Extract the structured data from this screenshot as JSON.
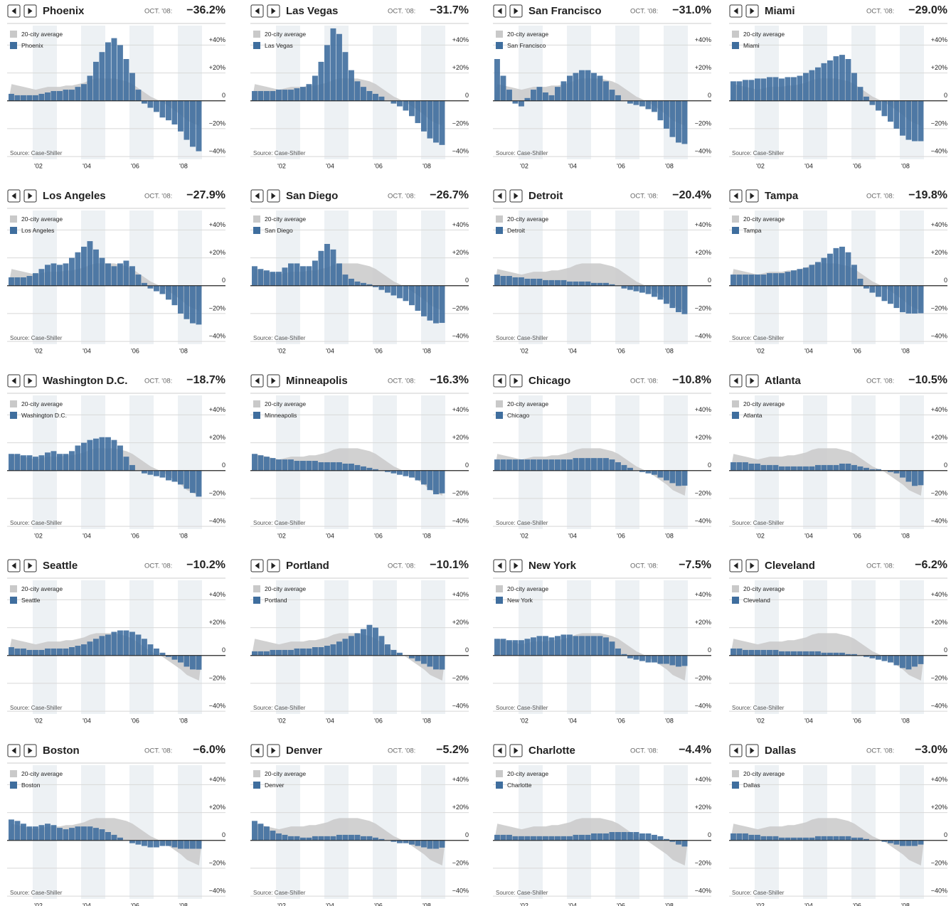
{
  "chart_data": {
    "type": "bar",
    "date_label": "OCT. '08:",
    "source": "Source: Case-Shiller",
    "x": [
      2001,
      2001.25,
      2001.5,
      2001.75,
      2002,
      2002.25,
      2002.5,
      2002.75,
      2003,
      2003.25,
      2003.5,
      2003.75,
      2004,
      2004.25,
      2004.5,
      2004.75,
      2005,
      2005.25,
      2005.5,
      2005.75,
      2006,
      2006.25,
      2006.5,
      2006.75,
      2007,
      2007.25,
      2007.5,
      2007.75,
      2008,
      2008.25,
      2008.5,
      2008.75
    ],
    "xlim": [
      2001,
      2009
    ],
    "xticks": [
      {
        "value": 2002,
        "label": "'02"
      },
      {
        "value": 2004,
        "label": "'04"
      },
      {
        "value": 2006,
        "label": "'06"
      },
      {
        "value": 2008,
        "label": "'08"
      }
    ],
    "ylim": [
      -42,
      54
    ],
    "yticks": [
      {
        "value": 40,
        "label": "+40%"
      },
      {
        "value": 20,
        "label": "+20%"
      },
      0,
      {
        "value": -20,
        "label": "−20%"
      },
      {
        "value": -40,
        "label": "−40%"
      }
    ],
    "grid": true,
    "color": "#3f6e9e",
    "average": {
      "name": "20-city average",
      "color": "#c9c9c9",
      "values": [
        12,
        11,
        10,
        9,
        8,
        9,
        10,
        10,
        10,
        11,
        11,
        12,
        13,
        15,
        16,
        16,
        16,
        16,
        15,
        14,
        12,
        9,
        6,
        3,
        1,
        -1,
        -4,
        -7,
        -10,
        -14,
        -16,
        -18
      ]
    },
    "panels": [
      {
        "name": "Phoenix",
        "value": -36.2,
        "value_label": "−36.2%",
        "values": [
          5,
          4,
          4,
          4,
          4,
          5,
          6,
          7,
          7,
          8,
          8,
          10,
          12,
          18,
          28,
          35,
          42,
          45,
          40,
          30,
          20,
          8,
          -2,
          -5,
          -8,
          -12,
          -14,
          -17,
          -22,
          -28,
          -33,
          -36.2
        ]
      },
      {
        "name": "Las Vegas",
        "value": -31.7,
        "value_label": "−31.7%",
        "values": [
          7,
          7,
          7,
          7,
          8,
          8,
          8,
          9,
          10,
          12,
          18,
          28,
          40,
          52,
          48,
          35,
          22,
          14,
          10,
          7,
          5,
          3,
          0,
          -2,
          -4,
          -7,
          -11,
          -16,
          -22,
          -27,
          -30,
          -31.7
        ]
      },
      {
        "name": "San Francisco",
        "value": -31.0,
        "value_label": "−31.0%",
        "values": [
          30,
          18,
          8,
          -2,
          -4,
          2,
          8,
          10,
          6,
          4,
          10,
          14,
          18,
          20,
          22,
          22,
          20,
          18,
          14,
          8,
          4,
          0,
          -2,
          -3,
          -4,
          -6,
          -8,
          -14,
          -20,
          -26,
          -30,
          -31.0
        ]
      },
      {
        "name": "Miami",
        "value": -29.0,
        "value_label": "−29.0%",
        "values": [
          14,
          14,
          15,
          15,
          16,
          16,
          17,
          17,
          16,
          17,
          17,
          18,
          20,
          22,
          24,
          27,
          29,
          32,
          33,
          30,
          20,
          10,
          3,
          -3,
          -7,
          -11,
          -15,
          -20,
          -25,
          -28,
          -29,
          -29.0
        ]
      },
      {
        "name": "Los Angeles",
        "value": -27.9,
        "value_label": "−27.9%",
        "values": [
          6,
          6,
          6,
          7,
          9,
          12,
          15,
          16,
          15,
          16,
          20,
          24,
          28,
          32,
          26,
          20,
          16,
          14,
          16,
          18,
          14,
          8,
          2,
          -2,
          -4,
          -6,
          -10,
          -14,
          -20,
          -24,
          -27,
          -27.9
        ]
      },
      {
        "name": "San Diego",
        "value": -26.7,
        "value_label": "−26.7%",
        "values": [
          14,
          12,
          11,
          10,
          10,
          13,
          16,
          16,
          14,
          14,
          18,
          25,
          30,
          26,
          16,
          8,
          5,
          3,
          2,
          1,
          -1,
          -3,
          -5,
          -7,
          -9,
          -11,
          -14,
          -18,
          -22,
          -25,
          -27,
          -26.7
        ]
      },
      {
        "name": "Detroit",
        "value": -20.4,
        "value_label": "−20.4%",
        "values": [
          8,
          7,
          7,
          6,
          6,
          5,
          5,
          5,
          4,
          4,
          4,
          4,
          3,
          3,
          3,
          3,
          2,
          2,
          2,
          1,
          0,
          -2,
          -3,
          -4,
          -5,
          -6,
          -8,
          -10,
          -13,
          -16,
          -19,
          -20.4
        ]
      },
      {
        "name": "Tampa",
        "value": -19.8,
        "value_label": "−19.8%",
        "values": [
          8,
          8,
          8,
          8,
          8,
          8,
          9,
          9,
          9,
          10,
          11,
          12,
          13,
          15,
          17,
          20,
          23,
          27,
          28,
          24,
          15,
          5,
          -2,
          -5,
          -8,
          -11,
          -13,
          -16,
          -19,
          -20,
          -20,
          -19.8
        ]
      },
      {
        "name": "Washington D.C.",
        "value": -18.7,
        "value_label": "−18.7%",
        "values": [
          12,
          12,
          11,
          11,
          10,
          11,
          13,
          14,
          12,
          12,
          14,
          18,
          20,
          22,
          23,
          24,
          24,
          22,
          18,
          10,
          4,
          0,
          -2,
          -3,
          -4,
          -5,
          -7,
          -8,
          -10,
          -13,
          -16,
          -18.7
        ]
      },
      {
        "name": "Minneapolis",
        "value": -16.3,
        "value_label": "−16.3%",
        "values": [
          12,
          11,
          10,
          9,
          8,
          8,
          8,
          7,
          7,
          7,
          7,
          6,
          6,
          6,
          6,
          5,
          5,
          4,
          3,
          2,
          1,
          0,
          -1,
          -2,
          -3,
          -4,
          -5,
          -7,
          -10,
          -14,
          -17,
          -16.3
        ]
      },
      {
        "name": "Chicago",
        "value": -10.8,
        "value_label": "−10.8%",
        "values": [
          8,
          8,
          8,
          8,
          8,
          8,
          8,
          8,
          8,
          8,
          8,
          8,
          8,
          9,
          9,
          9,
          9,
          9,
          9,
          8,
          6,
          4,
          2,
          0,
          -1,
          -2,
          -3,
          -5,
          -7,
          -9,
          -11,
          -10.8
        ]
      },
      {
        "name": "Atlanta",
        "value": -10.5,
        "value_label": "−10.5%",
        "values": [
          6,
          6,
          6,
          5,
          5,
          4,
          4,
          4,
          3,
          3,
          3,
          3,
          3,
          3,
          4,
          4,
          4,
          4,
          5,
          5,
          4,
          3,
          2,
          1,
          1,
          0,
          -1,
          -2,
          -5,
          -8,
          -11,
          -10.5
        ]
      },
      {
        "name": "Seattle",
        "value": -10.2,
        "value_label": "−10.2%",
        "values": [
          6,
          5,
          5,
          4,
          4,
          4,
          5,
          5,
          5,
          5,
          6,
          7,
          8,
          10,
          12,
          14,
          15,
          17,
          18,
          18,
          17,
          15,
          12,
          8,
          5,
          2,
          -1,
          -3,
          -5,
          -8,
          -10,
          -10.2
        ]
      },
      {
        "name": "Portland",
        "value": -10.1,
        "value_label": "−10.1%",
        "values": [
          3,
          3,
          3,
          4,
          4,
          4,
          4,
          5,
          5,
          5,
          6,
          6,
          7,
          8,
          10,
          12,
          14,
          16,
          19,
          22,
          20,
          14,
          8,
          4,
          2,
          0,
          -2,
          -4,
          -6,
          -8,
          -10,
          -10.1
        ]
      },
      {
        "name": "New York",
        "value": -7.5,
        "value_label": "−7.5%",
        "values": [
          12,
          12,
          11,
          11,
          11,
          12,
          13,
          14,
          14,
          13,
          14,
          15,
          15,
          14,
          14,
          14,
          14,
          14,
          13,
          10,
          5,
          1,
          -2,
          -3,
          -4,
          -5,
          -5,
          -6,
          -6,
          -7,
          -8,
          -7.5
        ]
      },
      {
        "name": "Cleveland",
        "value": -6.2,
        "value_label": "−6.2%",
        "values": [
          5,
          5,
          4,
          4,
          4,
          4,
          4,
          4,
          3,
          3,
          3,
          3,
          3,
          3,
          3,
          2,
          2,
          2,
          2,
          1,
          1,
          0,
          -1,
          -2,
          -3,
          -4,
          -5,
          -7,
          -9,
          -10,
          -8,
          -6.2
        ]
      },
      {
        "name": "Boston",
        "value": -6.0,
        "value_label": "−6.0%",
        "values": [
          15,
          14,
          12,
          10,
          10,
          11,
          12,
          11,
          9,
          8,
          9,
          10,
          10,
          10,
          9,
          8,
          6,
          4,
          2,
          0,
          -2,
          -3,
          -4,
          -5,
          -5,
          -4,
          -4,
          -5,
          -6,
          -6,
          -6,
          -6.0
        ]
      },
      {
        "name": "Denver",
        "value": -5.2,
        "value_label": "−5.2%",
        "values": [
          14,
          12,
          10,
          7,
          5,
          4,
          3,
          3,
          2,
          2,
          3,
          3,
          3,
          3,
          4,
          4,
          4,
          4,
          3,
          3,
          2,
          1,
          0,
          -1,
          -2,
          -2,
          -3,
          -4,
          -5,
          -6,
          -6,
          -5.2
        ]
      },
      {
        "name": "Charlotte",
        "value": -4.4,
        "value_label": "−4.4%",
        "values": [
          4,
          4,
          4,
          3,
          3,
          3,
          3,
          3,
          3,
          3,
          3,
          3,
          3,
          4,
          4,
          4,
          5,
          5,
          5,
          6,
          6,
          6,
          6,
          6,
          5,
          5,
          4,
          3,
          1,
          -1,
          -3,
          -4.4
        ]
      },
      {
        "name": "Dallas",
        "value": -3.0,
        "value_label": "−3.0%",
        "values": [
          5,
          5,
          5,
          4,
          4,
          3,
          3,
          3,
          2,
          2,
          2,
          2,
          2,
          2,
          3,
          3,
          3,
          3,
          3,
          3,
          2,
          2,
          1,
          0,
          0,
          -1,
          -2,
          -3,
          -4,
          -4,
          -4,
          -3.0
        ]
      }
    ]
  }
}
